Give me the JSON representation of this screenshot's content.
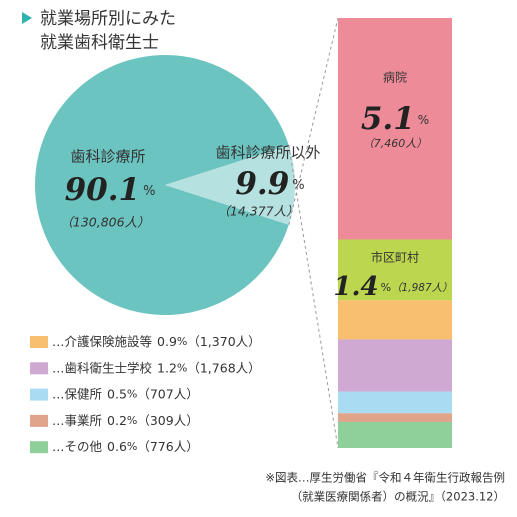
{
  "title": [
    "就業場所別にみた",
    "就業歯科衛生士"
  ],
  "source": [
    "※図表…厚生労働省『令和４年衛生行政報告例",
    "（就業医療関係者）の概況』（2023.12）"
  ],
  "chart_data": [
    {
      "type": "pie",
      "unit": "%",
      "categories": [
        "歯科診療所",
        "歯科診療所以外"
      ],
      "values": [
        90.1,
        9.9
      ],
      "counts": [
        130806,
        14377
      ],
      "count_labels": [
        "（130,806人）",
        "（14,377人）"
      ],
      "colors": [
        "#6cc4c1",
        "#b5e2e0"
      ]
    },
    {
      "type": "bar",
      "stacked": true,
      "unit": "%",
      "legend_prefix": "…",
      "categories": [
        "病院",
        "市区町村",
        "介護保険施設等",
        "歯科衛生士学校",
        "保健所",
        "事業所",
        "その他"
      ],
      "values": [
        5.1,
        1.4,
        0.9,
        1.2,
        0.5,
        0.2,
        0.6
      ],
      "counts": [
        7460,
        1987,
        1370,
        1768,
        707,
        309,
        776
      ],
      "count_labels": [
        "（7,460人）",
        "（1,987人）",
        "（1,370人）",
        "（1,768人）",
        "（707人）",
        "（309人）",
        "（776人）"
      ],
      "colors": [
        "#ee8b98",
        "#bcd64f",
        "#f8c06e",
        "#cfa9d2",
        "#a9dcf3",
        "#e0a48a",
        "#8fcf99"
      ],
      "ylim": [
        0,
        9.9
      ]
    }
  ]
}
